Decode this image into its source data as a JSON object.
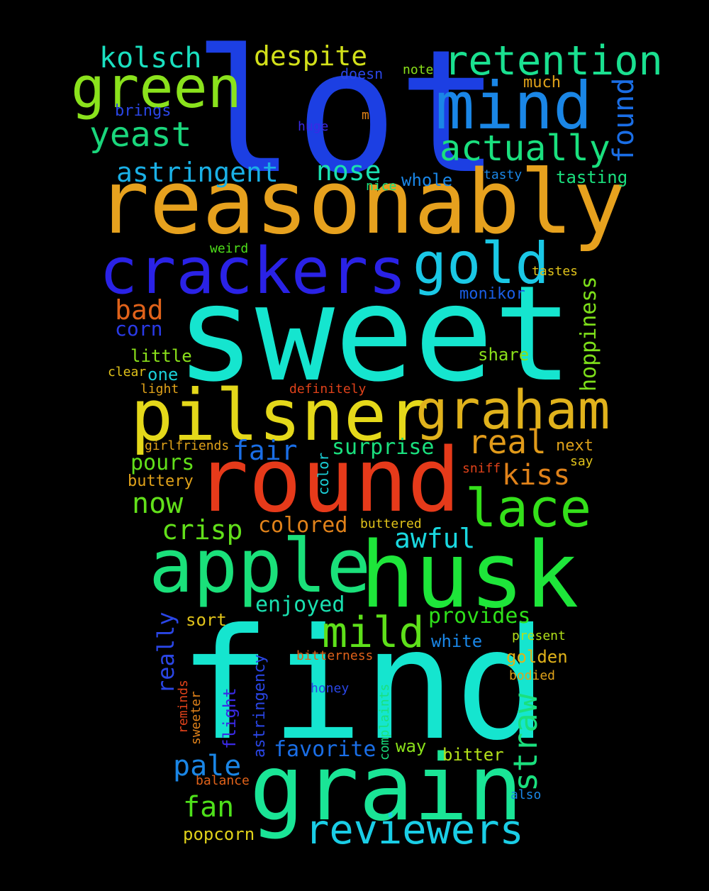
{
  "words": [
    {
      "text": "lot",
      "color": "#1c3fe3"
    },
    {
      "text": "reasonably",
      "color": "#e6a11e"
    },
    {
      "text": "sweet",
      "color": "#15e5cf"
    },
    {
      "text": "find",
      "color": "#15e5cf"
    },
    {
      "text": "round",
      "color": "#e63a1a"
    },
    {
      "text": "pilsner",
      "color": "#e4d81a"
    },
    {
      "text": "husk",
      "color": "#1ee63a"
    },
    {
      "text": "apple",
      "color": "#1ae07a"
    },
    {
      "text": "grain",
      "color": "#1ae596"
    },
    {
      "text": "crackers",
      "color": "#2a22e6"
    },
    {
      "text": "graham",
      "color": "#e0b21c"
    },
    {
      "text": "mind",
      "color": "#1a86e6"
    },
    {
      "text": "green",
      "color": "#8ae21c"
    },
    {
      "text": "retention",
      "color": "#1ae090"
    },
    {
      "text": "gold",
      "color": "#1ac8e6"
    },
    {
      "text": "lace",
      "color": "#34e01a"
    },
    {
      "text": "mild",
      "color": "#5ee01a"
    },
    {
      "text": "reviewers",
      "color": "#1acde6"
    },
    {
      "text": "actually",
      "color": "#1ae07e"
    },
    {
      "text": "kolsch",
      "color": "#1ae0c0"
    },
    {
      "text": "despite",
      "color": "#d2e01a"
    },
    {
      "text": "yeast",
      "color": "#1ad67c"
    },
    {
      "text": "astringent",
      "color": "#1ab0e6"
    },
    {
      "text": "nose",
      "color": "#1ae0b0"
    },
    {
      "text": "real",
      "color": "#e09a1a"
    },
    {
      "text": "straw",
      "color": "#1ae07e"
    },
    {
      "text": "kiss",
      "color": "#e0821a"
    },
    {
      "text": "awful",
      "color": "#1ad8e0"
    },
    {
      "text": "crisp",
      "color": "#62e01a"
    },
    {
      "text": "now",
      "color": "#62e01a"
    },
    {
      "text": "fair",
      "color": "#1a6ee6"
    },
    {
      "text": "bad",
      "color": "#e0621a"
    },
    {
      "text": "found",
      "color": "#1a6ee6"
    },
    {
      "text": "hoppiness",
      "color": "#7ee01a"
    },
    {
      "text": "surprise",
      "color": "#1ae07e"
    },
    {
      "text": "pours",
      "color": "#62e01a"
    },
    {
      "text": "colored",
      "color": "#e0821a"
    },
    {
      "text": "enjoyed",
      "color": "#1ae0b0"
    },
    {
      "text": "provides",
      "color": "#2ee01a"
    },
    {
      "text": "fan",
      "color": "#4ee01a"
    },
    {
      "text": "pale",
      "color": "#1a86e6"
    },
    {
      "text": "favorite",
      "color": "#1a6ee6"
    },
    {
      "text": "really",
      "color": "#2a46e6"
    },
    {
      "text": "corn",
      "color": "#2a3ae6"
    },
    {
      "text": "monikor",
      "color": "#1a5ee6"
    },
    {
      "text": "whole",
      "color": "#1a86e6"
    },
    {
      "text": "tasting",
      "color": "#1ae07e"
    },
    {
      "text": "little",
      "color": "#8ae01a"
    },
    {
      "text": "share",
      "color": "#8ae01a"
    },
    {
      "text": "one",
      "color": "#1ad0d8"
    },
    {
      "text": "buttery",
      "color": "#e0a21a"
    },
    {
      "text": "sort",
      "color": "#e0c21a"
    },
    {
      "text": "white",
      "color": "#1a86e6"
    },
    {
      "text": "golden",
      "color": "#e0b21a"
    },
    {
      "text": "popcorn",
      "color": "#e0d21a"
    },
    {
      "text": "bitter",
      "color": "#b2e01a"
    },
    {
      "text": "way",
      "color": "#8ae01a"
    },
    {
      "text": "next",
      "color": "#e0a21a"
    },
    {
      "text": "much",
      "color": "#e0a21a"
    },
    {
      "text": "brings",
      "color": "#2a46e6"
    },
    {
      "text": "doesn",
      "color": "#2a46e6"
    },
    {
      "text": "note",
      "color": "#8ae01a"
    },
    {
      "text": "huge",
      "color": "#3a2ae6"
    },
    {
      "text": "m",
      "color": "#e0821a"
    },
    {
      "text": "tasty",
      "color": "#1a86e6"
    },
    {
      "text": "nice",
      "color": "#1ae07e"
    },
    {
      "text": "weird",
      "color": "#4ee01a"
    },
    {
      "text": "tastes",
      "color": "#e0c21a"
    },
    {
      "text": "clear",
      "color": "#e0c21a"
    },
    {
      "text": "light",
      "color": "#e0a21a"
    },
    {
      "text": "definitely",
      "color": "#e0421a"
    },
    {
      "text": "girlfriends",
      "color": "#e0a21a"
    },
    {
      "text": "color",
      "color": "#1ad0d8"
    },
    {
      "text": "buttered",
      "color": "#e0c21a"
    },
    {
      "text": "sniff",
      "color": "#e0421a"
    },
    {
      "text": "say",
      "color": "#e0c21a"
    },
    {
      "text": "present",
      "color": "#b2e01a"
    },
    {
      "text": "bitterness",
      "color": "#e0621a"
    },
    {
      "text": "bodied",
      "color": "#e0a21a"
    },
    {
      "text": "honey",
      "color": "#2a46e6"
    },
    {
      "text": "astringency",
      "color": "#2a46e6"
    },
    {
      "text": "flight",
      "color": "#3a2ae6"
    },
    {
      "text": "sweeter",
      "color": "#e0821a"
    },
    {
      "text": "reminds",
      "color": "#e0421a"
    },
    {
      "text": "complaints",
      "color": "#1ae07e"
    },
    {
      "text": "balance",
      "color": "#e0621a"
    },
    {
      "text": "also",
      "color": "#1a86e6"
    }
  ]
}
